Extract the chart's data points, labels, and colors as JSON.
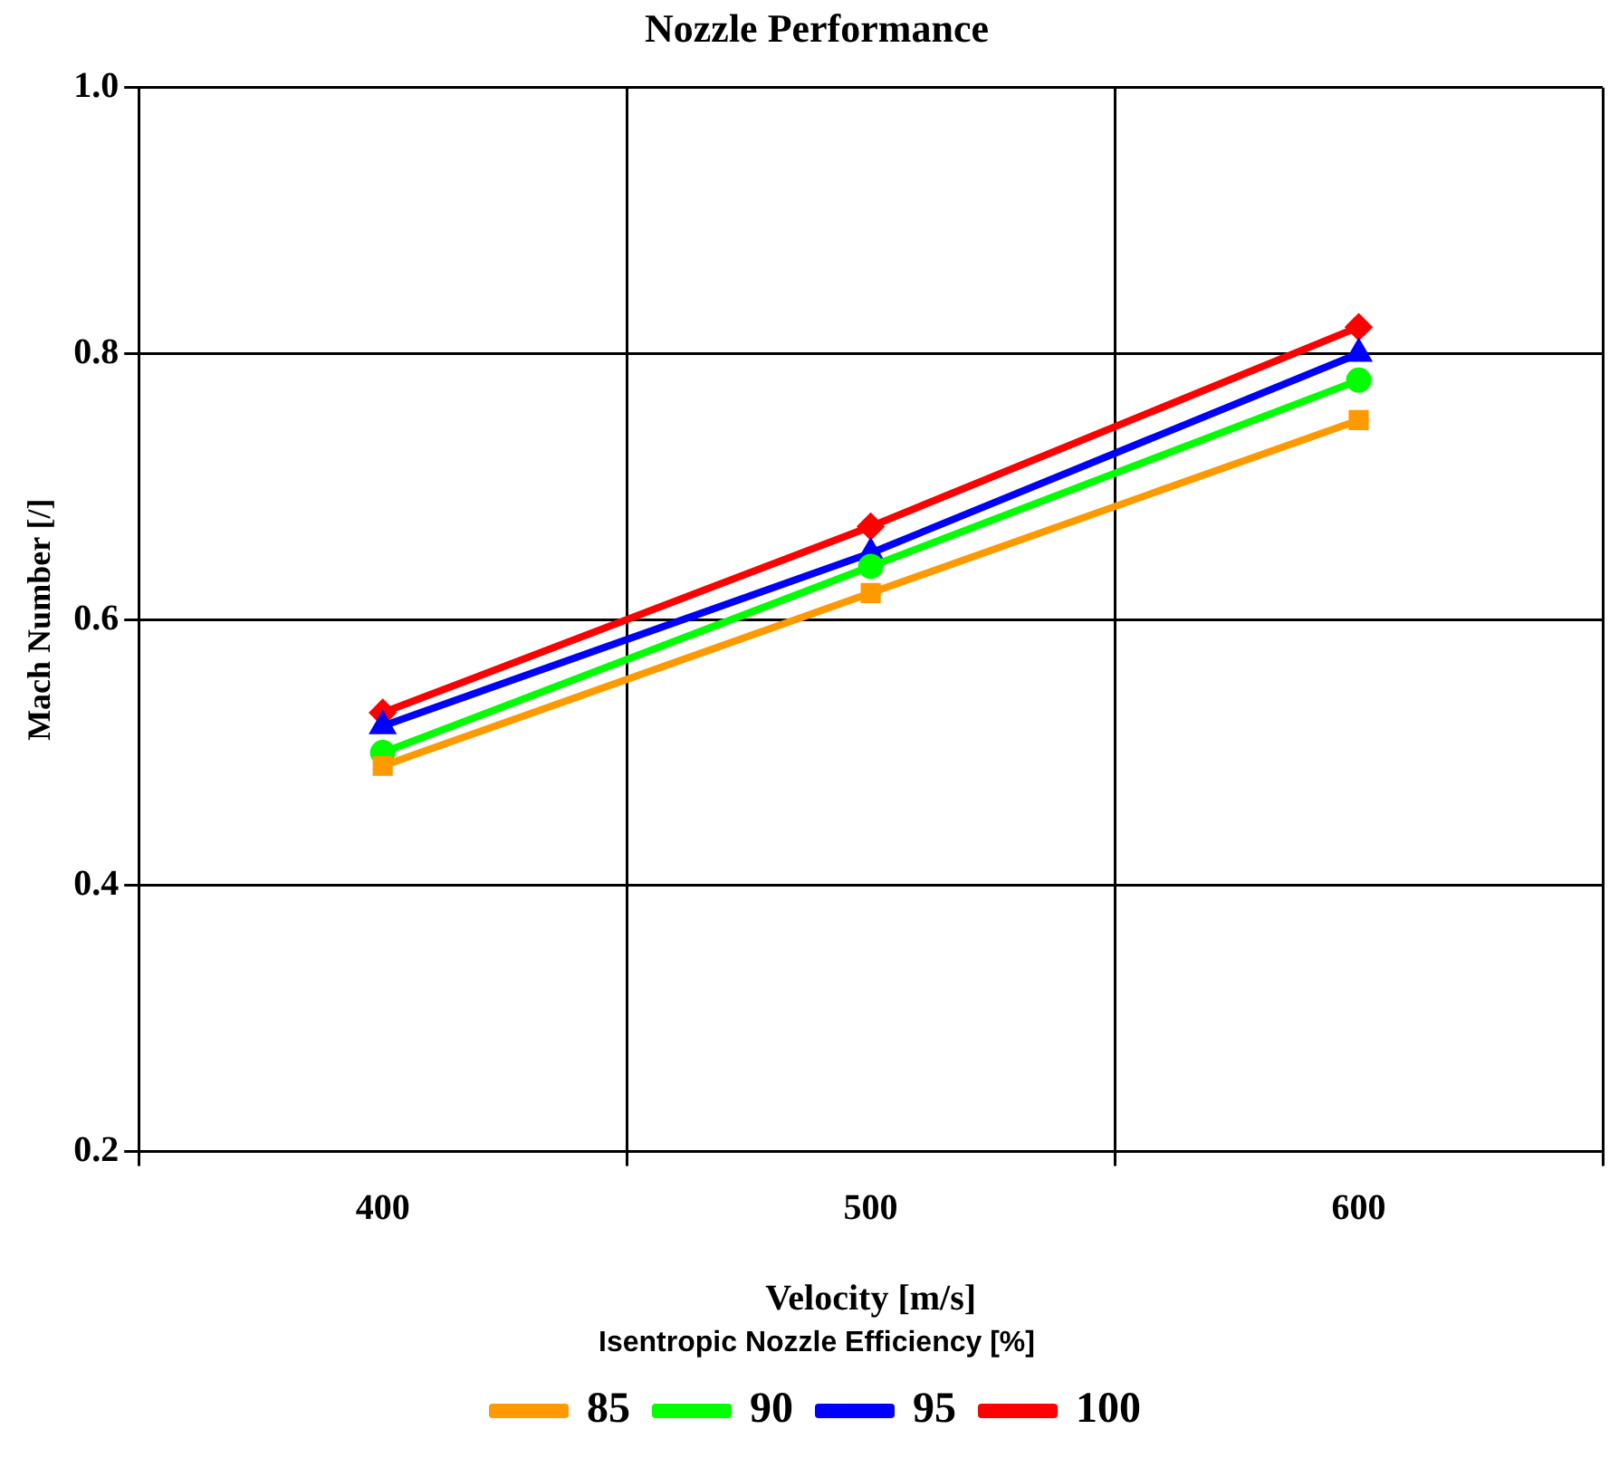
{
  "chart_data": {
    "type": "line",
    "title": "Nozzle Performance",
    "xlabel": "Velocity [m/s]",
    "ylabel": "Mach Number [/]",
    "legend_title": "Isentropic Nozzle Efficiency [%]",
    "legend": "bottom",
    "grid": true,
    "categories": [
      "400",
      "500",
      "600"
    ],
    "ylim": [
      0.2,
      1.0
    ],
    "yticks": [
      {
        "value": 0.2,
        "label": "0.2"
      },
      {
        "value": 0.4,
        "label": "0.4"
      },
      {
        "value": 0.6,
        "label": "0.6"
      },
      {
        "value": 0.8,
        "label": "0.8"
      },
      {
        "value": 1.0,
        "label": "1.0"
      }
    ],
    "series": [
      {
        "name": "85",
        "color": "#ff9900",
        "marker": "square",
        "values": [
          0.49,
          0.62,
          0.75
        ]
      },
      {
        "name": "90",
        "color": "#00ff00",
        "marker": "circle",
        "values": [
          0.5,
          0.64,
          0.78
        ]
      },
      {
        "name": "95",
        "color": "#0000ff",
        "marker": "triangle",
        "values": [
          0.52,
          0.65,
          0.8
        ]
      },
      {
        "name": "100",
        "color": "#ff0000",
        "marker": "diamond",
        "values": [
          0.53,
          0.67,
          0.82
        ]
      }
    ]
  }
}
